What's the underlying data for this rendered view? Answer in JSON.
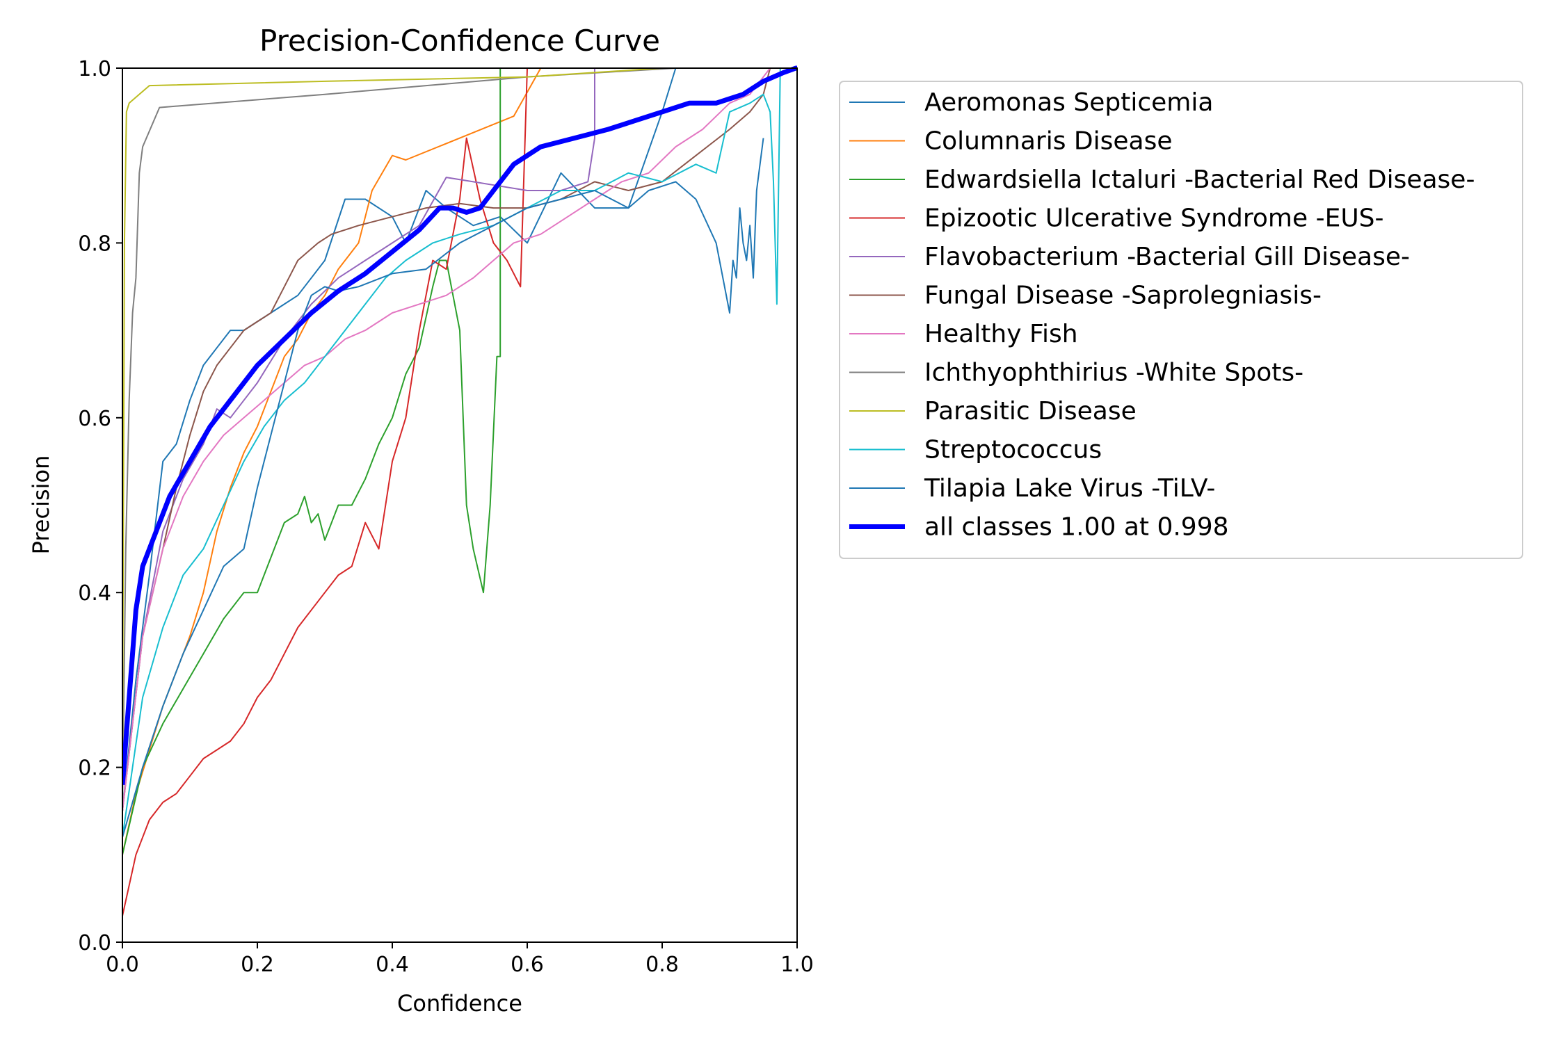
{
  "chart_data": {
    "type": "line",
    "title": "Precision-Confidence Curve",
    "xlabel": "Confidence",
    "ylabel": "Precision",
    "xlim": [
      0,
      1
    ],
    "ylim": [
      0,
      1
    ],
    "xticks": [
      "0.0",
      "0.2",
      "0.4",
      "0.6",
      "0.8",
      "1.0"
    ],
    "yticks": [
      "0.0",
      "0.2",
      "0.4",
      "0.6",
      "0.8",
      "1.0"
    ],
    "grid": false,
    "legend_position": "outside-right",
    "series": [
      {
        "name": "Aeromonas Septicemia",
        "color": "#1f77b4",
        "width": 2,
        "x": [
          0.0,
          0.02,
          0.04,
          0.06,
          0.08,
          0.1,
          0.12,
          0.14,
          0.16,
          0.18,
          0.2,
          0.22,
          0.24,
          0.26,
          0.28,
          0.3,
          0.33,
          0.36,
          0.4,
          0.42,
          0.45,
          0.48,
          0.52,
          0.56,
          0.6,
          0.65,
          0.7,
          0.75,
          0.8,
          0.82
        ],
        "y": [
          0.15,
          0.3,
          0.42,
          0.55,
          0.57,
          0.62,
          0.66,
          0.68,
          0.7,
          0.7,
          0.71,
          0.72,
          0.73,
          0.74,
          0.76,
          0.78,
          0.85,
          0.85,
          0.83,
          0.8,
          0.86,
          0.84,
          0.82,
          0.83,
          0.8,
          0.88,
          0.84,
          0.84,
          0.95,
          1.0
        ]
      },
      {
        "name": "Columnaris Disease",
        "color": "#ff7f0e",
        "width": 2,
        "x": [
          0.0,
          0.02,
          0.04,
          0.06,
          0.08,
          0.1,
          0.12,
          0.14,
          0.16,
          0.18,
          0.2,
          0.22,
          0.24,
          0.26,
          0.28,
          0.3,
          0.32,
          0.35,
          0.37,
          0.4,
          0.42,
          0.5,
          0.58,
          0.62
        ],
        "y": [
          0.1,
          0.17,
          0.22,
          0.27,
          0.31,
          0.35,
          0.4,
          0.47,
          0.52,
          0.56,
          0.59,
          0.63,
          0.67,
          0.69,
          0.72,
          0.74,
          0.77,
          0.8,
          0.86,
          0.9,
          0.895,
          0.92,
          0.945,
          1.0
        ]
      },
      {
        "name": "Edwardsiella Ictaluri -Bacterial Red Disease-",
        "color": "#2ca02c",
        "width": 2,
        "x": [
          0.0,
          0.03,
          0.06,
          0.09,
          0.12,
          0.15,
          0.18,
          0.2,
          0.22,
          0.24,
          0.26,
          0.27,
          0.28,
          0.29,
          0.3,
          0.32,
          0.34,
          0.36,
          0.38,
          0.4,
          0.42,
          0.44,
          0.46,
          0.47,
          0.48,
          0.5,
          0.51,
          0.52,
          0.535,
          0.545,
          0.555,
          0.56,
          0.56
        ],
        "y": [
          0.1,
          0.2,
          0.25,
          0.29,
          0.33,
          0.37,
          0.4,
          0.4,
          0.44,
          0.48,
          0.49,
          0.51,
          0.48,
          0.49,
          0.46,
          0.5,
          0.5,
          0.53,
          0.57,
          0.6,
          0.65,
          0.68,
          0.75,
          0.78,
          0.78,
          0.7,
          0.5,
          0.45,
          0.4,
          0.5,
          0.67,
          0.67,
          1.0
        ]
      },
      {
        "name": "Epizootic Ulcerative Syndrome -EUS-",
        "color": "#d62728",
        "width": 2,
        "x": [
          0.0,
          0.02,
          0.04,
          0.06,
          0.08,
          0.1,
          0.12,
          0.14,
          0.16,
          0.18,
          0.2,
          0.22,
          0.24,
          0.26,
          0.28,
          0.3,
          0.32,
          0.34,
          0.36,
          0.38,
          0.4,
          0.42,
          0.44,
          0.46,
          0.48,
          0.5,
          0.51,
          0.53,
          0.55,
          0.57,
          0.59,
          0.6
        ],
        "y": [
          0.03,
          0.1,
          0.14,
          0.16,
          0.17,
          0.19,
          0.21,
          0.22,
          0.23,
          0.25,
          0.28,
          0.3,
          0.33,
          0.36,
          0.38,
          0.4,
          0.42,
          0.43,
          0.48,
          0.45,
          0.55,
          0.6,
          0.7,
          0.78,
          0.77,
          0.85,
          0.92,
          0.85,
          0.8,
          0.78,
          0.75,
          1.0
        ]
      },
      {
        "name": "Flavobacterium -Bacterial Gill Disease-",
        "color": "#9467bd",
        "width": 2,
        "x": [
          0.0,
          0.03,
          0.06,
          0.09,
          0.12,
          0.14,
          0.16,
          0.18,
          0.2,
          0.24,
          0.28,
          0.32,
          0.36,
          0.4,
          0.44,
          0.48,
          0.52,
          0.56,
          0.6,
          0.65,
          0.69,
          0.7,
          0.7
        ],
        "y": [
          0.15,
          0.35,
          0.47,
          0.53,
          0.57,
          0.61,
          0.6,
          0.62,
          0.64,
          0.69,
          0.73,
          0.76,
          0.78,
          0.8,
          0.82,
          0.875,
          0.87,
          0.865,
          0.86,
          0.86,
          0.87,
          0.92,
          1.0
        ]
      },
      {
        "name": "Fungal Disease -Saprolegniasis-",
        "color": "#8c564b",
        "width": 2,
        "x": [
          0.0,
          0.03,
          0.06,
          0.08,
          0.1,
          0.12,
          0.14,
          0.16,
          0.18,
          0.2,
          0.22,
          0.24,
          0.26,
          0.29,
          0.31,
          0.35,
          0.4,
          0.45,
          0.5,
          0.55,
          0.6,
          0.65,
          0.7,
          0.75,
          0.8,
          0.85,
          0.9,
          0.93,
          0.95,
          0.96
        ],
        "y": [
          0.15,
          0.35,
          0.45,
          0.52,
          0.58,
          0.63,
          0.66,
          0.68,
          0.7,
          0.71,
          0.72,
          0.75,
          0.78,
          0.8,
          0.81,
          0.82,
          0.83,
          0.84,
          0.845,
          0.84,
          0.84,
          0.85,
          0.87,
          0.86,
          0.87,
          0.9,
          0.93,
          0.95,
          0.97,
          1.0
        ]
      },
      {
        "name": "Healthy Fish",
        "color": "#e377c2",
        "width": 2,
        "x": [
          0.0,
          0.03,
          0.06,
          0.09,
          0.12,
          0.15,
          0.18,
          0.21,
          0.24,
          0.27,
          0.3,
          0.33,
          0.36,
          0.4,
          0.44,
          0.48,
          0.52,
          0.55,
          0.58,
          0.62,
          0.66,
          0.7,
          0.74,
          0.78,
          0.82,
          0.86,
          0.9,
          0.93,
          0.96
        ],
        "y": [
          0.15,
          0.35,
          0.45,
          0.51,
          0.55,
          0.58,
          0.6,
          0.62,
          0.64,
          0.66,
          0.67,
          0.69,
          0.7,
          0.72,
          0.73,
          0.74,
          0.76,
          0.78,
          0.8,
          0.81,
          0.83,
          0.85,
          0.87,
          0.88,
          0.91,
          0.93,
          0.96,
          0.97,
          1.0
        ]
      },
      {
        "name": "Ichthyophthirius -White Spots-",
        "color": "#7f7f7f",
        "width": 2,
        "x": [
          0.0,
          0.005,
          0.01,
          0.015,
          0.02,
          0.025,
          0.03,
          0.055,
          0.3,
          0.6,
          0.82,
          1.0
        ],
        "y": [
          0.15,
          0.45,
          0.62,
          0.72,
          0.76,
          0.88,
          0.91,
          0.955,
          0.97,
          0.99,
          1.0,
          1.0
        ]
      },
      {
        "name": "Parasitic Disease",
        "color": "#bcbd22",
        "width": 2,
        "x": [
          0.0,
          0.003,
          0.006,
          0.01,
          0.04,
          0.3,
          0.6,
          0.8,
          1.0
        ],
        "y": [
          0.2,
          0.8,
          0.95,
          0.96,
          0.98,
          0.985,
          0.99,
          1.0,
          1.0
        ]
      },
      {
        "name": "Streptococcus",
        "color": "#17becf",
        "width": 2,
        "x": [
          0.0,
          0.03,
          0.06,
          0.09,
          0.12,
          0.15,
          0.18,
          0.21,
          0.24,
          0.27,
          0.3,
          0.33,
          0.36,
          0.39,
          0.42,
          0.46,
          0.5,
          0.55,
          0.6,
          0.65,
          0.7,
          0.75,
          0.8,
          0.85,
          0.88,
          0.9,
          0.93,
          0.95,
          0.96,
          0.965,
          0.97,
          0.975
        ],
        "y": [
          0.12,
          0.28,
          0.36,
          0.42,
          0.45,
          0.5,
          0.55,
          0.59,
          0.62,
          0.64,
          0.67,
          0.7,
          0.73,
          0.76,
          0.78,
          0.8,
          0.81,
          0.82,
          0.84,
          0.86,
          0.86,
          0.88,
          0.87,
          0.89,
          0.88,
          0.95,
          0.96,
          0.97,
          0.95,
          0.87,
          0.73,
          1.0
        ]
      },
      {
        "name": "Tilapia Lake Virus -TiLV-",
        "color": "#1f77b4",
        "width": 2,
        "x": [
          0.0,
          0.03,
          0.06,
          0.09,
          0.12,
          0.15,
          0.18,
          0.2,
          0.22,
          0.24,
          0.26,
          0.28,
          0.3,
          0.32,
          0.35,
          0.4,
          0.45,
          0.5,
          0.55,
          0.6,
          0.65,
          0.7,
          0.75,
          0.78,
          0.82,
          0.85,
          0.88,
          0.9,
          0.905,
          0.91,
          0.915,
          0.92,
          0.925,
          0.93,
          0.935,
          0.94,
          0.95
        ],
        "y": [
          0.12,
          0.2,
          0.27,
          0.33,
          0.38,
          0.43,
          0.45,
          0.52,
          0.58,
          0.64,
          0.7,
          0.74,
          0.75,
          0.745,
          0.75,
          0.765,
          0.77,
          0.8,
          0.82,
          0.84,
          0.85,
          0.86,
          0.84,
          0.86,
          0.87,
          0.85,
          0.8,
          0.72,
          0.78,
          0.76,
          0.84,
          0.8,
          0.78,
          0.82,
          0.76,
          0.86,
          0.92
        ]
      },
      {
        "name": "all classes 1.00 at 0.998",
        "color": "#0000ff",
        "width": 7,
        "x": [
          0.0,
          0.01,
          0.02,
          0.03,
          0.05,
          0.07,
          0.1,
          0.13,
          0.16,
          0.2,
          0.24,
          0.28,
          0.32,
          0.36,
          0.4,
          0.44,
          0.47,
          0.49,
          0.51,
          0.53,
          0.55,
          0.58,
          0.62,
          0.67,
          0.72,
          0.76,
          0.8,
          0.84,
          0.88,
          0.9,
          0.92,
          0.95,
          0.98,
          0.998,
          1.0
        ],
        "y": [
          0.18,
          0.28,
          0.38,
          0.43,
          0.47,
          0.51,
          0.55,
          0.59,
          0.62,
          0.66,
          0.69,
          0.72,
          0.745,
          0.765,
          0.79,
          0.815,
          0.84,
          0.84,
          0.835,
          0.84,
          0.86,
          0.89,
          0.91,
          0.92,
          0.93,
          0.94,
          0.95,
          0.96,
          0.96,
          0.965,
          0.97,
          0.985,
          0.995,
          1.0,
          1.0
        ]
      }
    ]
  }
}
